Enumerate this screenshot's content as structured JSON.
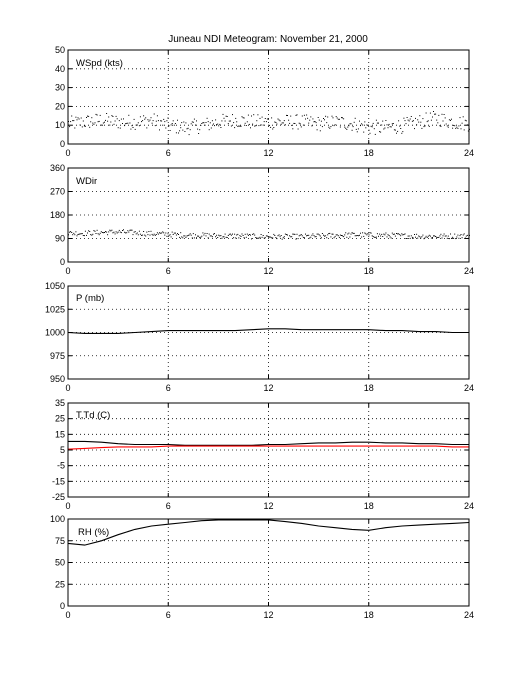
{
  "title": "Juneau NDI Meteogram:   November 21, 2000",
  "chart_data": [
    {
      "type": "scatter",
      "label": "WSpd (kts)",
      "x_range": [
        0,
        24
      ],
      "x_ticks": [
        "0",
        "6",
        "12",
        "18",
        "24"
      ],
      "ylim": [
        0,
        50
      ],
      "y_ticks": [
        "0",
        "10",
        "20",
        "30",
        "40",
        "50"
      ],
      "grid": true,
      "series": [
        {
          "color": "#000000",
          "x": [
            0,
            1,
            2,
            3,
            4,
            5,
            6,
            7,
            8,
            9,
            10,
            11,
            12,
            13,
            14,
            15,
            16,
            17,
            18,
            19,
            20,
            21,
            22,
            23,
            24
          ],
          "values": [
            11,
            12,
            13,
            12,
            12,
            13,
            10,
            9,
            10,
            12,
            13,
            12,
            12,
            12,
            12,
            11,
            12,
            11,
            9,
            9,
            10,
            12,
            14,
            12,
            11
          ],
          "spread": 4
        }
      ]
    },
    {
      "type": "scatter",
      "label": "WDir",
      "x_range": [
        0,
        24
      ],
      "x_ticks": [
        "0",
        "6",
        "12",
        "18",
        "24"
      ],
      "ylim": [
        0,
        360
      ],
      "y_ticks": [
        "0",
        "90",
        "180",
        "270",
        "360"
      ],
      "grid": true,
      "series": [
        {
          "color": "#000000",
          "x": [
            0,
            1,
            2,
            3,
            4,
            5,
            6,
            7,
            8,
            9,
            10,
            11,
            12,
            13,
            14,
            15,
            16,
            17,
            18,
            19,
            20,
            21,
            22,
            23,
            24
          ],
          "values": [
            112,
            112,
            115,
            117,
            114,
            110,
            108,
            104,
            104,
            102,
            102,
            100,
            99,
            99,
            99,
            101,
            104,
            106,
            105,
            104,
            102,
            101,
            100,
            101,
            102
          ],
          "spread": 10
        }
      ]
    },
    {
      "type": "line",
      "label": "P (mb)",
      "x_range": [
        0,
        24
      ],
      "x_ticks": [
        "0",
        "6",
        "12",
        "18",
        "24"
      ],
      "ylim": [
        950,
        1050
      ],
      "y_ticks": [
        "950",
        "975",
        "1000",
        "1025",
        "1050"
      ],
      "grid": true,
      "series": [
        {
          "color": "#000000",
          "x": [
            0,
            1,
            2,
            3,
            4,
            5,
            6,
            7,
            8,
            9,
            10,
            11,
            12,
            13,
            14,
            15,
            16,
            17,
            18,
            19,
            20,
            21,
            22,
            23,
            24
          ],
          "values": [
            1000,
            999,
            999,
            999,
            1000,
            1001,
            1002,
            1002,
            1002,
            1002,
            1002,
            1003,
            1004,
            1004,
            1003,
            1003,
            1003,
            1003,
            1003,
            1002,
            1002,
            1001,
            1001,
            1000,
            1000
          ]
        }
      ]
    },
    {
      "type": "line",
      "label": "T,Td (C)",
      "x_range": [
        0,
        24
      ],
      "x_ticks": [
        "0",
        "6",
        "12",
        "18",
        "24"
      ],
      "ylim": [
        -25,
        35
      ],
      "y_ticks": [
        "-25",
        "-15",
        "-5",
        "5",
        "15",
        "25",
        "35"
      ],
      "grid": true,
      "series": [
        {
          "color": "#000000",
          "x": [
            0,
            1,
            2,
            3,
            4,
            5,
            6,
            7,
            8,
            9,
            10,
            11,
            12,
            13,
            14,
            15,
            16,
            17,
            18,
            19,
            20,
            21,
            22,
            23,
            24
          ],
          "values": [
            10.5,
            10.5,
            10,
            9,
            8.5,
            8.5,
            8.5,
            8,
            8,
            8,
            8,
            8,
            8.5,
            8.5,
            9,
            9.5,
            9.5,
            10,
            10,
            9.5,
            9.5,
            9,
            9,
            8.5,
            8.5
          ]
        },
        {
          "color": "#ff0000",
          "x": [
            0,
            1,
            2,
            3,
            4,
            5,
            6,
            7,
            8,
            9,
            10,
            11,
            12,
            13,
            14,
            15,
            16,
            17,
            18,
            19,
            20,
            21,
            22,
            23,
            24
          ],
          "values": [
            5.5,
            6,
            6.5,
            7,
            7,
            7,
            7.5,
            7.5,
            7.5,
            7.5,
            7.5,
            7.5,
            7.5,
            7.5,
            7.5,
            7.5,
            7.5,
            7.5,
            7.5,
            7.5,
            7.5,
            7.5,
            7.5,
            7,
            7
          ]
        }
      ]
    },
    {
      "type": "line",
      "label": "RH (%)",
      "x_range": [
        0,
        24
      ],
      "x_ticks": [
        "0",
        "6",
        "12",
        "18",
        "24"
      ],
      "ylim": [
        0,
        100
      ],
      "y_ticks": [
        "0",
        "25",
        "50",
        "75",
        "100"
      ],
      "grid": true,
      "series": [
        {
          "color": "#000000",
          "x": [
            0,
            1,
            2,
            3,
            4,
            5,
            6,
            7,
            8,
            9,
            10,
            11,
            12,
            13,
            14,
            15,
            16,
            17,
            18,
            19,
            20,
            21,
            22,
            23,
            24
          ],
          "values": [
            72,
            70,
            75,
            82,
            88,
            92,
            94,
            96,
            98,
            99,
            99,
            99,
            99,
            97,
            95,
            92,
            90,
            88,
            87,
            90,
            92,
            93,
            94,
            95,
            96
          ]
        }
      ]
    }
  ]
}
